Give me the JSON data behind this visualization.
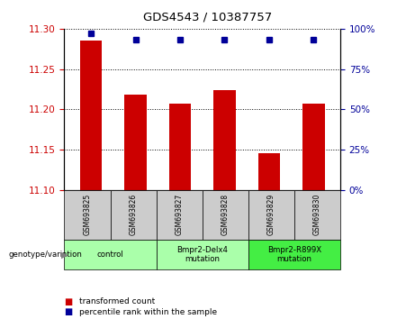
{
  "title": "GDS4543 / 10387757",
  "samples": [
    "GSM693825",
    "GSM693826",
    "GSM693827",
    "GSM693828",
    "GSM693829",
    "GSM693830"
  ],
  "bar_values": [
    11.285,
    11.218,
    11.207,
    11.224,
    11.146,
    11.207
  ],
  "percentile_values": [
    97,
    93,
    93,
    93,
    93,
    93
  ],
  "bar_color": "#cc0000",
  "dot_color": "#000099",
  "ylim_left": [
    11.1,
    11.3
  ],
  "ylim_right": [
    0,
    100
  ],
  "yticks_left": [
    11.1,
    11.15,
    11.2,
    11.25,
    11.3
  ],
  "yticks_right": [
    0,
    25,
    50,
    75,
    100
  ],
  "groups": [
    {
      "label": "control",
      "span": [
        0,
        1
      ],
      "color": "#aaffaa"
    },
    {
      "label": "Bmpr2-Delx4\nmutation",
      "span": [
        2,
        3
      ],
      "color": "#aaffaa"
    },
    {
      "label": "Bmpr2-R899X\nmutation",
      "span": [
        4,
        5
      ],
      "color": "#44ee44"
    }
  ],
  "legend_items": [
    {
      "color": "#cc0000",
      "label": "transformed count"
    },
    {
      "color": "#000099",
      "label": "percentile rank within the sample"
    }
  ],
  "tick_label_color_left": "#cc0000",
  "tick_label_color_right": "#000099",
  "bar_width": 0.5,
  "sample_box_color": "#cccccc",
  "background_color": "#ffffff"
}
